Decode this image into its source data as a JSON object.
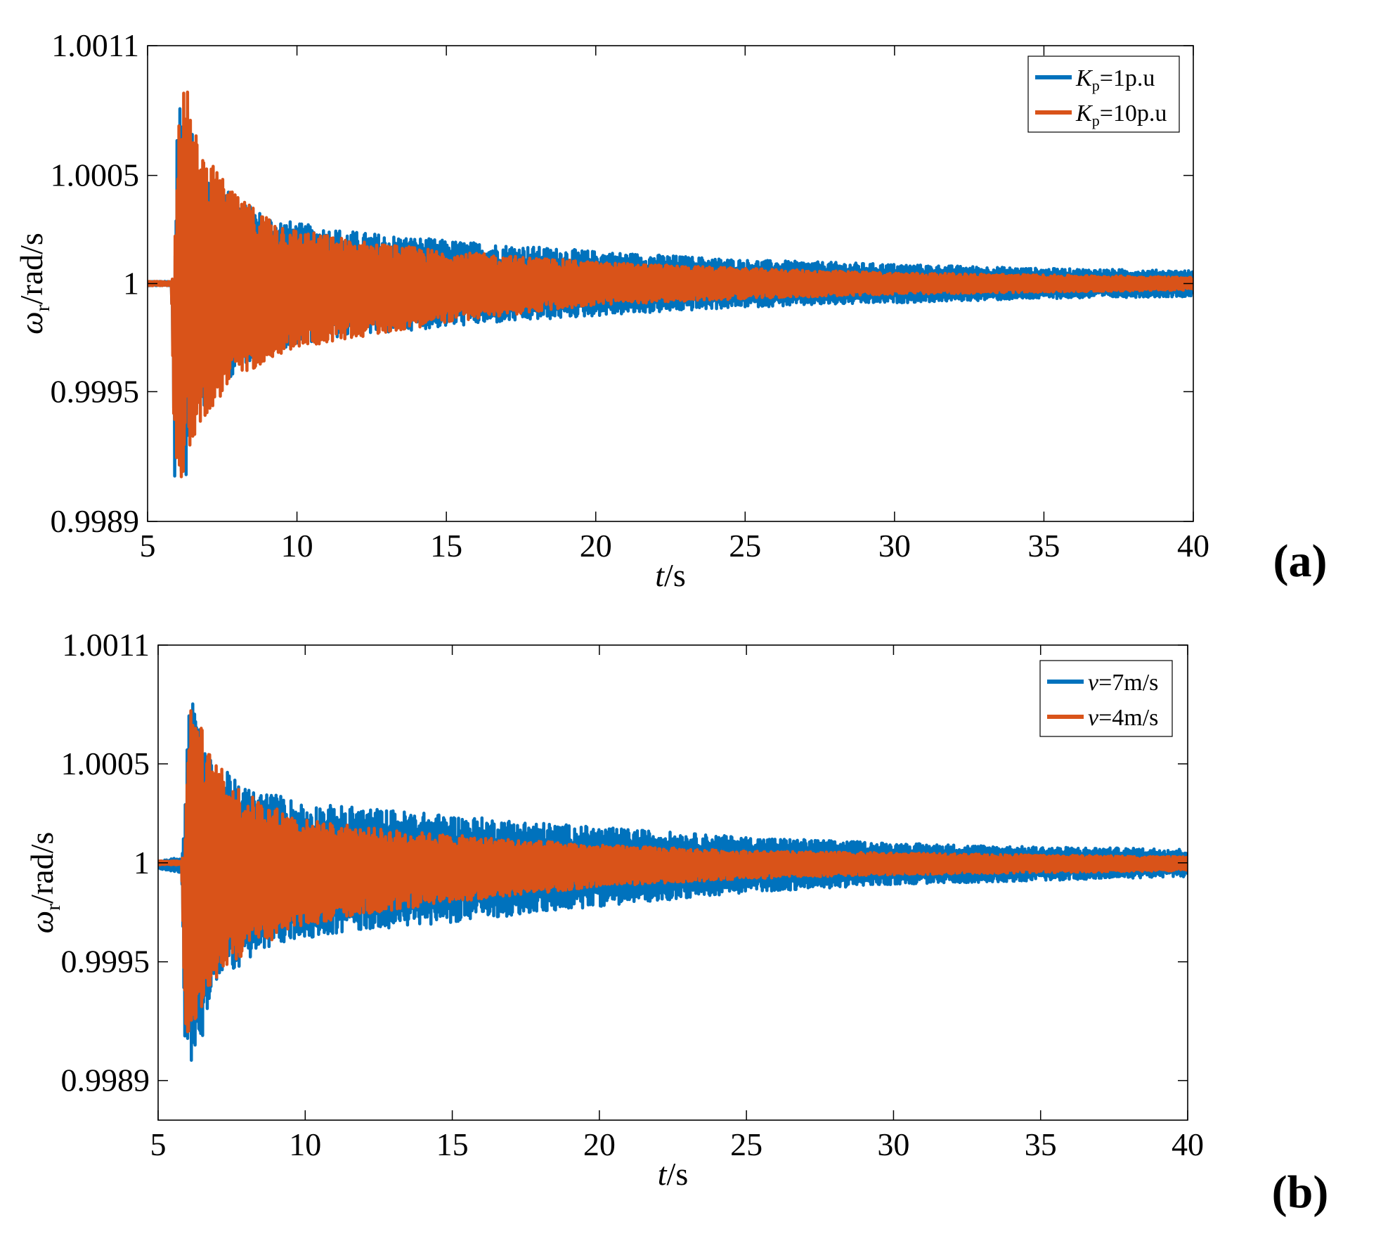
{
  "chart_data": [
    {
      "panel": "(a)",
      "type": "line",
      "xlabel": {
        "var": "t",
        "unit": "/s"
      },
      "ylabel": {
        "var": "ω",
        "sub": "r",
        "unit": "/rad/s"
      },
      "xlim": [
        5,
        40
      ],
      "ylim": [
        0.9989,
        1.0011
      ],
      "xticks": [
        5,
        10,
        15,
        20,
        25,
        30,
        35,
        40
      ],
      "xtick_labels": [
        "5",
        "10",
        "15",
        "20",
        "25",
        "30",
        "35",
        "40"
      ],
      "yticks": [
        0.9989,
        0.9995,
        1,
        1.0005,
        1.0011
      ],
      "ytick_labels": [
        "0.9989",
        "0.9995",
        "1",
        "1.0005",
        "1.0011"
      ],
      "grid": false,
      "legend_position": "top-right",
      "series": [
        {
          "name": "Kp=1p.u",
          "legend": {
            "var": "K",
            "sub": "p",
            "rest": "=1p.u"
          },
          "color": "#0072BD",
          "envelope": {
            "t": [
              5,
              5.8,
              5.9,
              6.0,
              6.3,
              6.6,
              7,
              8,
              9,
              10,
              12,
              15,
              20,
              25,
              30,
              35,
              40
            ],
            "upper": [
              1.00001,
              1.00001,
              1.0001,
              1.0009,
              1.00086,
              1.0006,
              1.00055,
              1.00039,
              1.00032,
              1.00028,
              1.00024,
              1.0002,
              1.00015,
              1.00011,
              1.00009,
              1.00007,
              1.00006
            ],
            "lower": [
              0.99999,
              0.99999,
              0.9991,
              0.99905,
              0.9991,
              0.9994,
              0.99945,
              0.9996,
              0.99968,
              0.99972,
              0.99976,
              0.9998,
              0.99985,
              0.99989,
              0.99991,
              0.99993,
              0.99994
            ]
          }
        },
        {
          "name": "Kp=10p.u",
          "legend": {
            "var": "K",
            "sub": "p",
            "rest": "=10p.u"
          },
          "color": "#D95319",
          "envelope": {
            "t": [
              5,
              5.8,
              5.9,
              6.0,
              6.3,
              6.6,
              7,
              8,
              9,
              10,
              12,
              15,
              20,
              25,
              30,
              35,
              40
            ],
            "upper": [
              1.00001,
              1.00001,
              1.0001,
              1.00085,
              1.00092,
              1.0007,
              1.00058,
              1.0004,
              1.00032,
              1.00025,
              1.0002,
              1.00015,
              1.0001,
              1.00007,
              1.00005,
              1.00004,
              1.00003
            ],
            "lower": [
              0.99999,
              0.99999,
              0.9992,
              0.99905,
              0.99915,
              0.9993,
              0.9994,
              0.99955,
              0.99965,
              0.9997,
              0.99975,
              0.99982,
              0.9999,
              0.99993,
              0.99995,
              0.99996,
              0.99997
            ]
          }
        }
      ]
    },
    {
      "panel": "(b)",
      "type": "line",
      "xlabel": {
        "var": "t",
        "unit": "/s"
      },
      "ylabel": {
        "var": "ω",
        "sub": "r",
        "unit": "/rad/s"
      },
      "xlim": [
        5,
        40
      ],
      "ylim": [
        0.9987,
        1.0011
      ],
      "xticks": [
        5,
        10,
        15,
        20,
        25,
        30,
        35,
        40
      ],
      "xtick_labels": [
        "5",
        "10",
        "15",
        "20",
        "25",
        "30",
        "35",
        "40"
      ],
      "yticks": [
        0.9989,
        0.9995,
        1,
        1.0005,
        1.0011
      ],
      "ytick_labels": [
        "0.9989",
        "0.9995",
        "1",
        "1.0005",
        "1.0011"
      ],
      "grid": false,
      "legend_position": "top-right",
      "series": [
        {
          "name": "v=7m/s",
          "legend": {
            "var": "v",
            "sub": "",
            "rest": "=7m/s"
          },
          "color": "#0072BD",
          "envelope": {
            "t": [
              5,
              5.8,
              5.9,
              6.0,
              6.3,
              6.6,
              7,
              8,
              9,
              10,
              12,
              15,
              20,
              25,
              30,
              35,
              40
            ],
            "upper": [
              1.00001,
              1.00003,
              1.0002,
              1.00085,
              1.0008,
              1.00055,
              1.0005,
              1.00038,
              1.00035,
              1.0003,
              1.00028,
              1.00024,
              1.00018,
              1.00013,
              1.0001,
              1.00008,
              1.00007
            ],
            "lower": [
              0.99997,
              0.99995,
              0.9991,
              0.99895,
              0.9989,
              0.9992,
              0.9994,
              0.9995,
              0.99958,
              0.99962,
              0.99966,
              0.9997,
              0.99978,
              0.99985,
              0.99989,
              0.99991,
              0.99993
            ]
          }
        },
        {
          "name": "v=4m/s",
          "legend": {
            "var": "v",
            "sub": "",
            "rest": "=4m/s"
          },
          "color": "#D95319",
          "envelope": {
            "t": [
              5,
              5.8,
              5.9,
              6.0,
              6.3,
              6.6,
              7,
              8,
              9,
              10,
              12,
              15,
              20,
              25,
              30,
              35,
              40
            ],
            "upper": [
              1.00001,
              1.00001,
              1.0001,
              1.0008,
              1.00083,
              1.0006,
              1.0005,
              1.00035,
              1.00028,
              1.00022,
              1.00018,
              1.00014,
              1.00009,
              1.00006,
              1.00005,
              1.00004,
              1.00003
            ],
            "lower": [
              0.99999,
              0.99999,
              0.9992,
              0.9991,
              0.9992,
              0.9993,
              0.9994,
              0.99955,
              0.99962,
              0.99968,
              0.99974,
              0.9998,
              0.99988,
              0.99992,
              0.99994,
              0.99995,
              0.99996
            ]
          }
        }
      ]
    }
  ]
}
